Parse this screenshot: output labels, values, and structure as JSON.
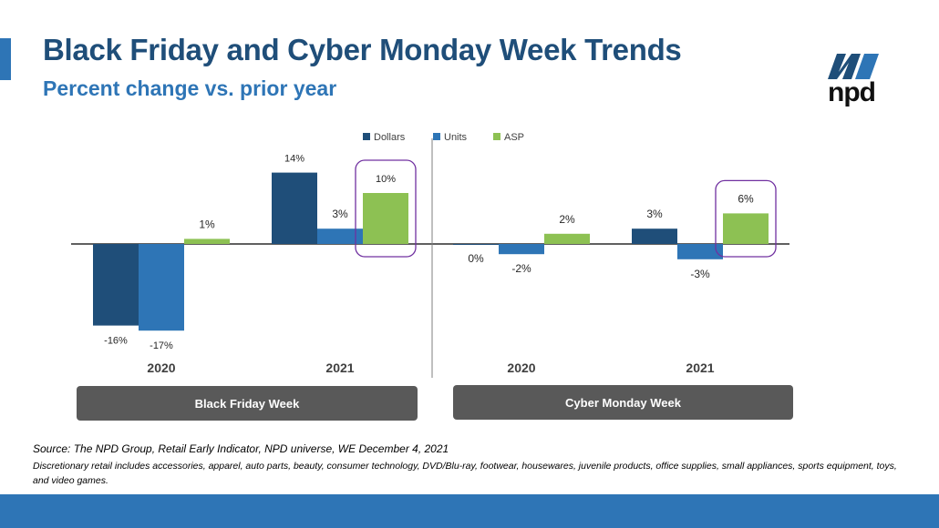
{
  "header": {
    "title": "Black Friday and Cyber Monday Week Trends",
    "subtitle": "Percent change vs. prior year"
  },
  "logo": {
    "text": "npd",
    "icon": "npd-logo-icon"
  },
  "colors": {
    "dollars": "#1F4E79",
    "units": "#2E75B6",
    "asp": "#8DC153",
    "highlight": "#7030A0",
    "title": "#1F4E79",
    "accent": "#2E75B6",
    "panel": "#595959"
  },
  "chart_data": {
    "type": "bar",
    "title": "Black Friday and Cyber Monday Week Trends",
    "subtitle": "Percent change vs. prior year",
    "legend": [
      "Dollars",
      "Units",
      "ASP"
    ],
    "legend_position": "top-center",
    "groups": [
      {
        "panel": "Black Friday Week",
        "categories": [
          "2020",
          "2021"
        ],
        "series": [
          {
            "name": "Dollars",
            "values": [
              -16,
              14
            ],
            "labels": [
              "-16%",
              "14%"
            ]
          },
          {
            "name": "Units",
            "values": [
              -17,
              3
            ],
            "labels": [
              "-17%",
              "3%"
            ]
          },
          {
            "name": "ASP",
            "values": [
              1,
              10
            ],
            "labels": [
              "1%",
              "10%"
            ]
          }
        ],
        "highlight": {
          "category": "2021",
          "series": "ASP"
        }
      },
      {
        "panel": "Cyber Monday Week",
        "categories": [
          "2020",
          "2021"
        ],
        "series": [
          {
            "name": "Dollars",
            "values": [
              0,
              3
            ],
            "labels": [
              "0%",
              "3%"
            ]
          },
          {
            "name": "Units",
            "values": [
              -2,
              -3
            ],
            "labels": [
              "-2%",
              "-3%"
            ]
          },
          {
            "name": "ASP",
            "values": [
              2,
              6
            ],
            "labels": [
              "2%",
              "6%"
            ]
          }
        ],
        "highlight": {
          "category": "2021",
          "series": "ASP"
        }
      }
    ],
    "ylabel": "",
    "xlabel": "",
    "ylim": [
      -17,
      14
    ],
    "grid": false
  },
  "footer": {
    "source": "Source: The NPD Group, Retail Early Indicator, NPD universe, WE December 4, 2021",
    "note": "Discretionary retail includes accessories, apparel, auto parts, beauty, consumer technology, DVD/Blu-ray, footwear, housewares, juvenile products, office supplies, small appliances, sports equipment, toys, and video games."
  }
}
